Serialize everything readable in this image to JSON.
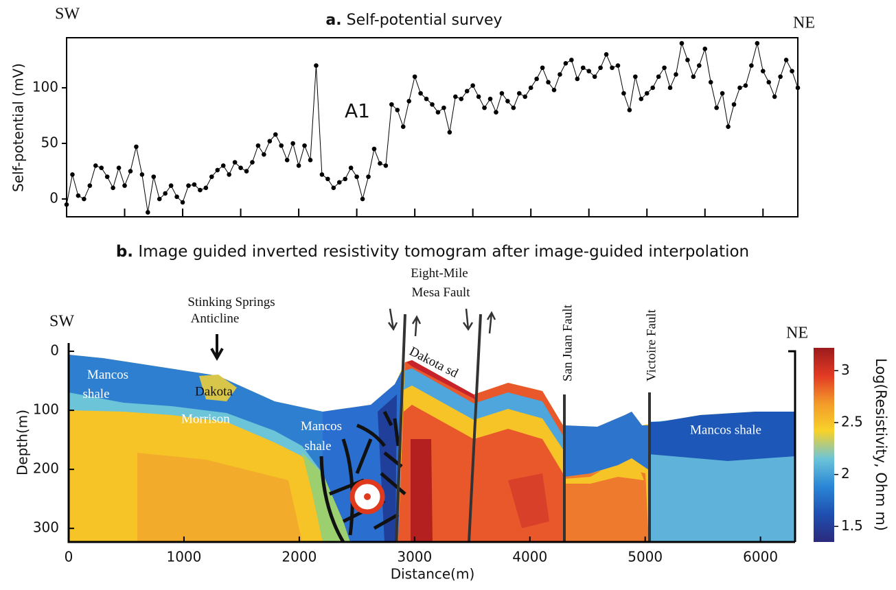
{
  "chart_data": [
    {
      "type": "line",
      "panel_label": "a.",
      "title": "Self-potential survey",
      "ylabel": "Self-potential (mV)",
      "left_label": "SW",
      "right_label": "NE",
      "annotation": "A1",
      "color": "#000000",
      "markers": true,
      "x": [
        0,
        50,
        100,
        150,
        200,
        250,
        300,
        350,
        400,
        450,
        500,
        550,
        600,
        650,
        700,
        750,
        800,
        850,
        900,
        950,
        1000,
        1050,
        1100,
        1150,
        1200,
        1250,
        1300,
        1350,
        1400,
        1450,
        1500,
        1550,
        1600,
        1650,
        1700,
        1750,
        1800,
        1850,
        1900,
        1950,
        2000,
        2050,
        2100,
        2150,
        2200,
        2250,
        2300,
        2350,
        2400,
        2450,
        2500,
        2550,
        2600,
        2650,
        2700,
        2750,
        2800,
        2850,
        2900,
        2950,
        3000,
        3050,
        3100,
        3150,
        3200,
        3250,
        3300,
        3350,
        3400,
        3450,
        3500,
        3550,
        3600,
        3650,
        3700,
        3750,
        3800,
        3850,
        3900,
        3950,
        4000,
        4050,
        4100,
        4150,
        4200,
        4250,
        4300,
        4350,
        4400,
        4450,
        4500,
        4550,
        4600,
        4650,
        4700,
        4750,
        4800,
        4850,
        4900,
        4950,
        5000,
        5050,
        5100,
        5150,
        5200,
        5250,
        5300,
        5350,
        5400,
        5450,
        5500,
        5550,
        5600,
        5650,
        5700,
        5750,
        5800,
        5850,
        5900,
        5950,
        6000,
        6050,
        6100,
        6150,
        6200,
        6250,
        6300
      ],
      "values": [
        -5,
        22,
        3,
        0,
        12,
        30,
        28,
        20,
        10,
        28,
        12,
        25,
        47,
        22,
        -12,
        20,
        0,
        5,
        12,
        2,
        -3,
        12,
        13,
        8,
        10,
        20,
        26,
        30,
        22,
        33,
        28,
        25,
        33,
        48,
        40,
        52,
        58,
        48,
        35,
        50,
        30,
        48,
        35,
        120,
        22,
        18,
        10,
        15,
        18,
        28,
        20,
        0,
        20,
        45,
        32,
        30,
        85,
        80,
        65,
        88,
        110,
        95,
        90,
        85,
        78,
        82,
        60,
        92,
        90,
        97,
        102,
        92,
        82,
        90,
        78,
        95,
        88,
        82,
        95,
        92,
        100,
        108,
        118,
        105,
        98,
        112,
        122,
        125,
        108,
        118,
        115,
        110,
        118,
        130,
        118,
        120,
        95,
        80,
        110,
        90,
        95,
        100,
        110,
        118,
        100,
        112,
        140,
        125,
        110,
        120,
        135,
        105,
        82,
        95,
        65,
        85,
        100,
        102,
        120,
        140,
        115,
        105,
        92,
        110,
        125,
        115,
        100
      ],
      "xlim": [
        0,
        6300
      ],
      "xticks": [
        0,
        500,
        1000,
        1500,
        2000,
        2500,
        3000,
        3500,
        4000,
        4500,
        5000,
        5500,
        6000
      ],
      "xtick_labels": false,
      "ylim": [
        -16,
        145
      ],
      "yticks": [
        0,
        50,
        100
      ]
    },
    {
      "type": "section",
      "panel_label": "b.",
      "title": "Image guided inverted resistivity tomogram after image-guided interpolation",
      "xlabel": "Distance(m)",
      "ylabel": "Depth(m)",
      "left_label": "SW",
      "right_label": "NE",
      "xlim": [
        0,
        6300
      ],
      "xticks": [
        0,
        1000,
        2000,
        3000,
        4000,
        5000,
        6000
      ],
      "ylim": [
        -14,
        323
      ],
      "yticks": [
        0,
        100,
        200,
        300
      ],
      "y_inverted": true,
      "annotations": {
        "anticline": [
          "Stinking Springs",
          "Anticline"
        ],
        "fault1": [
          "Eight-Mile",
          "Mesa Fault"
        ],
        "dakota_sd": "Dakota sd",
        "san_juan": "San Juan Fault",
        "victoire": "Victoire Fault",
        "mancos1": [
          "Mancos",
          "shale"
        ],
        "dakota": "Dakota",
        "morrison": "Morrison",
        "mancos2": [
          "Mancos",
          "shale"
        ],
        "mancos3": "Mancos shale"
      },
      "colorbar": {
        "label": "Log(Resistivity, Ohm m)",
        "lim": [
          1.35,
          3.22
        ],
        "ticks": [
          1.5,
          2,
          2.5,
          3
        ],
        "colors": [
          "#2b2a7c",
          "#1f4fb0",
          "#2a86d6",
          "#6cc4d8",
          "#f7d22a",
          "#f39a2a",
          "#e23a24",
          "#9c1a1c"
        ]
      }
    }
  ]
}
